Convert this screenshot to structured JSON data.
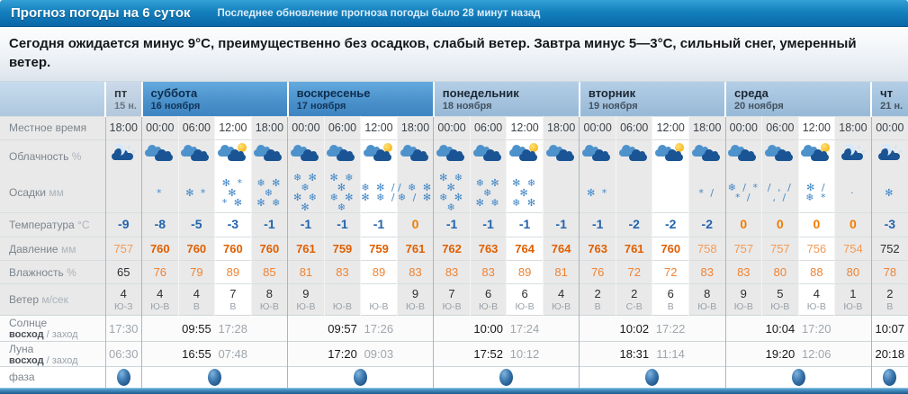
{
  "header": {
    "title": "Прогноз погоды на 6 суток",
    "update_note": "Последнее обновление прогноза погоды было 28 минут назад"
  },
  "summary": "Сегодня ожидается минус 9°C, преимущественно без осадков, слабый ветер. Завтра минус 5—3°C, сильный снег, умеренный ветер.",
  "colors": {
    "titlebar_blue": "#0d6cab",
    "weekend_header_blue": "#4a8fc8",
    "weekday_header_blue": "#a5c3dd",
    "temp_negative": "#2264ad",
    "temp_zero": "#f07c00",
    "pressure_orange": "#e05f00",
    "humidity_orange": "#ef8332",
    "precip_blue": "#4287c6"
  },
  "table": {
    "sub_strong": "восход",
    "sub_rest": "заход",
    "rows": [
      {
        "key": "time",
        "label": "Местное время",
        "unit": ""
      },
      {
        "key": "cloud",
        "label": "Облачность",
        "unit": "%"
      },
      {
        "key": "precip",
        "label": "Осадки",
        "unit": "мм"
      },
      {
        "key": "temp",
        "label": "Температура",
        "unit": "°C"
      },
      {
        "key": "press",
        "label": "Давление",
        "unit": "мм"
      },
      {
        "key": "hum",
        "label": "Влажность",
        "unit": "%"
      },
      {
        "key": "wind",
        "label": "Ветер",
        "unit": "м/сек"
      },
      {
        "key": "sun",
        "label": "Солнце",
        "sub": true
      },
      {
        "key": "moon",
        "label": "Луна",
        "sub": true
      },
      {
        "key": "phase",
        "label": "фаза",
        "unit": ""
      }
    ],
    "days": [
      {
        "name": "пт",
        "date": "15 н.",
        "type": "edge",
        "slots": [
          {
            "time": "18:00",
            "sky": "night-clouds",
            "precip": "",
            "temp": {
              "v": "-9",
              "c": "neg"
            },
            "press": {
              "v": "757",
              "c": "soft"
            },
            "hum": {
              "v": "65",
              "c": "dark"
            },
            "wind": {
              "v": "4",
              "d": "Ю-З"
            }
          }
        ],
        "sun": [
          {
            "slot": 0,
            "v": "17:30",
            "c": "grey"
          }
        ],
        "moon": [
          {
            "slot": 0,
            "v": "06:30",
            "c": "grey"
          }
        ]
      },
      {
        "name": "суббота",
        "date": "16 ноября",
        "type": "weekend",
        "slots": [
          {
            "time": "00:00",
            "sky": "cloudy",
            "precip": "*",
            "temp": {
              "v": "-8",
              "c": "neg"
            },
            "press": {
              "v": "760",
              "c": "strong"
            },
            "hum": {
              "v": "76",
              "c": "orange"
            },
            "wind": {
              "v": "4",
              "d": "Ю-В"
            }
          },
          {
            "time": "06:00",
            "sky": "cloudy",
            "precip": "✻ *",
            "temp": {
              "v": "-5",
              "c": "neg"
            },
            "press": {
              "v": "760",
              "c": "strong"
            },
            "hum": {
              "v": "79",
              "c": "orange"
            },
            "wind": {
              "v": "4",
              "d": "В"
            }
          },
          {
            "time": "12:00",
            "sky": "partly-sunny",
            "precip": "✻ * ✻\n* ✻",
            "temp": {
              "v": "-3",
              "c": "neg"
            },
            "press": {
              "v": "760",
              "c": "strong"
            },
            "hum": {
              "v": "89",
              "c": "orange"
            },
            "wind": {
              "v": "7",
              "d": "В"
            }
          },
          {
            "time": "18:00",
            "sky": "cloudy",
            "precip": "❄ ✻ ❄\n✻ ❄",
            "temp": {
              "v": "-1",
              "c": "neg"
            },
            "press": {
              "v": "760",
              "c": "strong"
            },
            "hum": {
              "v": "85",
              "c": "orange"
            },
            "wind": {
              "v": "8",
              "d": "Ю-В"
            }
          }
        ],
        "sun": [
          {
            "slot": 1,
            "v": "09:55",
            "c": "dark"
          },
          {
            "slot": 2,
            "v": "17:28",
            "c": "grey"
          }
        ],
        "moon": [
          {
            "slot": 1,
            "v": "16:55",
            "c": "dark"
          },
          {
            "slot": 2,
            "v": "07:48",
            "c": "grey"
          }
        ]
      },
      {
        "name": "воскресенье",
        "date": "17 ноября",
        "type": "weekend",
        "slots": [
          {
            "time": "00:00",
            "sky": "cloudy",
            "precip": "❄ ✻ ❄\n✻ ❄ ✻",
            "temp": {
              "v": "-1",
              "c": "neg"
            },
            "press": {
              "v": "761",
              "c": "strong"
            },
            "hum": {
              "v": "81",
              "c": "orange"
            },
            "wind": {
              "v": "9",
              "d": "Ю-В"
            }
          },
          {
            "time": "06:00",
            "sky": "cloudy",
            "precip": "✻ ❄ ✻\n❄ ✻ ❄",
            "temp": {
              "v": "-1",
              "c": "neg"
            },
            "press": {
              "v": "759",
              "c": "strong"
            },
            "hum": {
              "v": "83",
              "c": "orange"
            },
            "wind": {
              "v": "",
              "d": "Ю-В"
            }
          },
          {
            "time": "12:00",
            "sky": "partly-sunny",
            "precip": "❄ ✻ /\n✻ ❄ /",
            "temp": {
              "v": "-1",
              "c": "neg"
            },
            "press": {
              "v": "759",
              "c": "strong"
            },
            "hum": {
              "v": "89",
              "c": "orange"
            },
            "wind": {
              "v": "",
              "d": "Ю-В"
            }
          },
          {
            "time": "18:00",
            "sky": "cloudy",
            "precip": "/ ❄ ✻\n❄ / ✻",
            "temp": {
              "v": "0",
              "c": "zero"
            },
            "press": {
              "v": "761",
              "c": "strong"
            },
            "hum": {
              "v": "83",
              "c": "orange"
            },
            "wind": {
              "v": "9",
              "d": "Ю-В"
            }
          }
        ],
        "sun": [
          {
            "slot": 1,
            "v": "09:57",
            "c": "dark"
          },
          {
            "slot": 2,
            "v": "17:26",
            "c": "grey"
          }
        ],
        "moon": [
          {
            "slot": 1,
            "v": "17:20",
            "c": "dark"
          },
          {
            "slot": 2,
            "v": "09:03",
            "c": "grey"
          }
        ]
      },
      {
        "name": "понедельник",
        "date": "18 ноября",
        "type": "week",
        "slots": [
          {
            "time": "00:00",
            "sky": "cloudy",
            "precip": "✻ ❄ ✻\n❄ ✻ ❄",
            "temp": {
              "v": "-1",
              "c": "neg"
            },
            "press": {
              "v": "762",
              "c": "strong"
            },
            "hum": {
              "v": "83",
              "c": "orange"
            },
            "wind": {
              "v": "7",
              "d": "Ю-В"
            }
          },
          {
            "time": "06:00",
            "sky": "cloudy",
            "precip": "❄ ✻ ❄\n✻ ❄",
            "temp": {
              "v": "-1",
              "c": "neg"
            },
            "press": {
              "v": "763",
              "c": "strong"
            },
            "hum": {
              "v": "83",
              "c": "orange"
            },
            "wind": {
              "v": "6",
              "d": "Ю-В"
            }
          },
          {
            "time": "12:00",
            "sky": "partly-sunny",
            "precip": "✻ ❄ ✻\n❄ ✻",
            "temp": {
              "v": "-1",
              "c": "neg"
            },
            "press": {
              "v": "764",
              "c": "strong"
            },
            "hum": {
              "v": "89",
              "c": "orange"
            },
            "wind": {
              "v": "6",
              "d": "Ю-В"
            }
          },
          {
            "time": "18:00",
            "sky": "cloudy",
            "precip": "",
            "temp": {
              "v": "-1",
              "c": "neg"
            },
            "press": {
              "v": "764",
              "c": "strong"
            },
            "hum": {
              "v": "81",
              "c": "orange"
            },
            "wind": {
              "v": "4",
              "d": "Ю-В"
            }
          }
        ],
        "sun": [
          {
            "slot": 1,
            "v": "10:00",
            "c": "dark"
          },
          {
            "slot": 2,
            "v": "17:24",
            "c": "grey"
          }
        ],
        "moon": [
          {
            "slot": 1,
            "v": "17:52",
            "c": "dark"
          },
          {
            "slot": 2,
            "v": "10:12",
            "c": "grey"
          }
        ]
      },
      {
        "name": "вторник",
        "date": "19 ноября",
        "type": "week",
        "slots": [
          {
            "time": "00:00",
            "sky": "cloudy",
            "precip": "✻ *",
            "temp": {
              "v": "-1",
              "c": "neg"
            },
            "press": {
              "v": "763",
              "c": "strong"
            },
            "hum": {
              "v": "76",
              "c": "orange"
            },
            "wind": {
              "v": "2",
              "d": "В"
            }
          },
          {
            "time": "06:00",
            "sky": "cloudy",
            "precip": "",
            "temp": {
              "v": "-2",
              "c": "neg"
            },
            "press": {
              "v": "761",
              "c": "strong"
            },
            "hum": {
              "v": "72",
              "c": "orange"
            },
            "wind": {
              "v": "2",
              "d": "С-В"
            }
          },
          {
            "time": "12:00",
            "sky": "partly-sunny",
            "precip": "",
            "temp": {
              "v": "-2",
              "c": "neg"
            },
            "press": {
              "v": "760",
              "c": "strong"
            },
            "hum": {
              "v": "72",
              "c": "orange"
            },
            "wind": {
              "v": "6",
              "d": "В"
            }
          },
          {
            "time": "18:00",
            "sky": "cloudy",
            "precip": "* /",
            "temp": {
              "v": "-2",
              "c": "neg"
            },
            "press": {
              "v": "758",
              "c": "soft"
            },
            "hum": {
              "v": "83",
              "c": "orange"
            },
            "wind": {
              "v": "8",
              "d": "Ю-В"
            }
          }
        ],
        "sun": [
          {
            "slot": 1,
            "v": "10:02",
            "c": "dark"
          },
          {
            "slot": 2,
            "v": "17:22",
            "c": "grey"
          }
        ],
        "moon": [
          {
            "slot": 1,
            "v": "18:31",
            "c": "dark"
          },
          {
            "slot": 2,
            "v": "11:14",
            "c": "grey"
          }
        ]
      },
      {
        "name": "среда",
        "date": "20 ноября",
        "type": "week",
        "slots": [
          {
            "time": "00:00",
            "sky": "cloudy",
            "precip": "❄ / *\n* /",
            "temp": {
              "v": "0",
              "c": "zero"
            },
            "press": {
              "v": "757",
              "c": "soft"
            },
            "hum": {
              "v": "83",
              "c": "orange"
            },
            "wind": {
              "v": "9",
              "d": "Ю-В"
            }
          },
          {
            "time": "06:00",
            "sky": "cloudy",
            "precip": "/ , /\n, /",
            "temp": {
              "v": "0",
              "c": "zero"
            },
            "press": {
              "v": "757",
              "c": "soft"
            },
            "hum": {
              "v": "80",
              "c": "orange"
            },
            "wind": {
              "v": "5",
              "d": "Ю-В"
            }
          },
          {
            "time": "12:00",
            "sky": "partly-sunny",
            "precip": "✻ /\n❄ *",
            "temp": {
              "v": "0",
              "c": "zero"
            },
            "press": {
              "v": "756",
              "c": "soft"
            },
            "hum": {
              "v": "88",
              "c": "orange"
            },
            "wind": {
              "v": "4",
              "d": "Ю-В"
            }
          },
          {
            "time": "18:00",
            "sky": "night-clouds",
            "precip": "·",
            "temp": {
              "v": "0",
              "c": "zero"
            },
            "press": {
              "v": "754",
              "c": "soft"
            },
            "hum": {
              "v": "80",
              "c": "orange"
            },
            "wind": {
              "v": "1",
              "d": "Ю-В"
            }
          }
        ],
        "sun": [
          {
            "slot": 1,
            "v": "10:04",
            "c": "dark"
          },
          {
            "slot": 2,
            "v": "17:20",
            "c": "grey"
          }
        ],
        "moon": [
          {
            "slot": 1,
            "v": "19:20",
            "c": "dark"
          },
          {
            "slot": 2,
            "v": "12:06",
            "c": "grey"
          }
        ]
      },
      {
        "name": "чт",
        "date": "21 н.",
        "type": "week",
        "slots": [
          {
            "time": "00:00",
            "sky": "night-clouds",
            "precip": "✻",
            "temp": {
              "v": "-3",
              "c": "neg"
            },
            "press": {
              "v": "752",
              "c": "dark"
            },
            "hum": {
              "v": "78",
              "c": "orange"
            },
            "wind": {
              "v": "2",
              "d": "В"
            }
          }
        ],
        "sun": [
          {
            "slot": 0,
            "v": "10:07",
            "c": "dark"
          }
        ],
        "moon": [
          {
            "slot": 0,
            "v": "20:18",
            "c": "dark"
          }
        ]
      }
    ]
  }
}
